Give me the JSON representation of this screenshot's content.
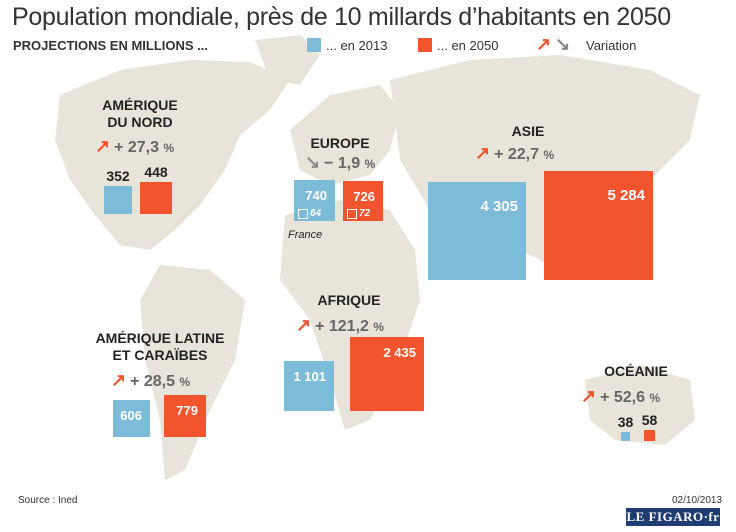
{
  "title": "Population mondiale, près de 10 millards d’habitants en 2050",
  "subtitle": "PROJECTIONS EN MILLIONS ...",
  "legend": {
    "y2013": "... en 2013",
    "y2050": "... en 2050",
    "variation": "Variation"
  },
  "colors": {
    "y2013": "#7dbcd8",
    "y2050": "#f2542d",
    "up": "#f2542d",
    "down": "#8a8a8a",
    "map": "#e8e4da"
  },
  "chart_data": {
    "type": "bar",
    "series": [
      {
        "name": "... en 2013"
      },
      {
        "name": "... en 2050"
      }
    ],
    "regions": [
      {
        "name_lines": [
          "AMÉRIQUE",
          "DU NORD"
        ],
        "v2013": 352,
        "v2050": 448,
        "label2013": "352",
        "label2050": "448",
        "variation": "+ 27,3",
        "unit": "%",
        "direction": "up"
      },
      {
        "name_lines": [
          "EUROPE"
        ],
        "v2013": 740,
        "v2050": 726,
        "label2013": "740",
        "label2050": "726",
        "variation": "− 1,9",
        "unit": "%",
        "direction": "down"
      },
      {
        "name_lines": [
          "ASIE"
        ],
        "v2013": 4305,
        "v2050": 5284,
        "label2013": "4 305",
        "label2050": "5 284",
        "variation": "+ 22,7",
        "unit": "%",
        "direction": "up"
      },
      {
        "name_lines": [
          "AFRIQUE"
        ],
        "v2013": 1101,
        "v2050": 2435,
        "label2013": "1 101",
        "label2050": "2 435",
        "variation": "+ 121,2",
        "unit": "%",
        "direction": "up"
      },
      {
        "name_lines": [
          "AMÉRIQUE LATINE",
          "ET CARAÏBES"
        ],
        "v2013": 606,
        "v2050": 779,
        "label2013": "606",
        "label2050": "779",
        "variation": "+ 28,5",
        "unit": "%",
        "direction": "up"
      },
      {
        "name_lines": [
          "OCÉANIE"
        ],
        "v2013": 38,
        "v2050": 58,
        "label2013": "38",
        "label2050": "58",
        "variation": "+ 52,6",
        "unit": "%",
        "direction": "up"
      }
    ],
    "france": {
      "label": "France",
      "v2013": 64,
      "v2050": 72,
      "label2013": "64",
      "label2050": "72"
    }
  },
  "source": "Source : Ined",
  "date": "02/10/2013",
  "logo": "LE FIGARO·fr"
}
